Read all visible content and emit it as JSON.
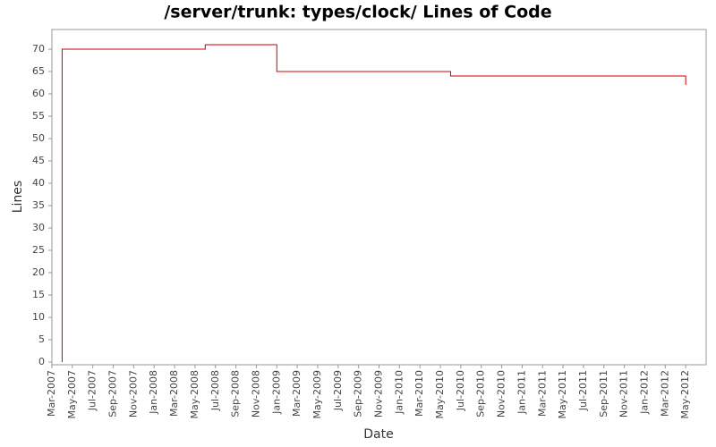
{
  "chart_data": {
    "type": "step",
    "title": "/server/trunk: types/clock/ Lines of Code",
    "x_label": "Date",
    "y_label": "Lines",
    "color": "#cc0000",
    "x": [
      "2007-04",
      "2007-04",
      "2008-06",
      "2009-01",
      "2010-06",
      "2012-05"
    ],
    "values": [
      0,
      70,
      71,
      65,
      64,
      62
    ],
    "xlim": [
      "2007-03",
      "2012-07"
    ],
    "xticks": [
      {
        "value": "2007-03",
        "label": "Mar-2007"
      },
      {
        "value": "2007-05",
        "label": "May-2007"
      },
      {
        "value": "2007-07",
        "label": "Jul-2007"
      },
      {
        "value": "2007-09",
        "label": "Sep-2007"
      },
      {
        "value": "2007-11",
        "label": "Nov-2007"
      },
      {
        "value": "2008-01",
        "label": "Jan-2008"
      },
      {
        "value": "2008-03",
        "label": "Mar-2008"
      },
      {
        "value": "2008-05",
        "label": "May-2008"
      },
      {
        "value": "2008-07",
        "label": "Jul-2008"
      },
      {
        "value": "2008-09",
        "label": "Sep-2008"
      },
      {
        "value": "2008-11",
        "label": "Nov-2008"
      },
      {
        "value": "2009-01",
        "label": "Jan-2009"
      },
      {
        "value": "2009-03",
        "label": "Mar-2009"
      },
      {
        "value": "2009-05",
        "label": "May-2009"
      },
      {
        "value": "2009-07",
        "label": "Jul-2009"
      },
      {
        "value": "2009-09",
        "label": "Sep-2009"
      },
      {
        "value": "2009-11",
        "label": "Nov-2009"
      },
      {
        "value": "2010-01",
        "label": "Jan-2010"
      },
      {
        "value": "2010-03",
        "label": "Mar-2010"
      },
      {
        "value": "2010-05",
        "label": "May-2010"
      },
      {
        "value": "2010-07",
        "label": "Jul-2010"
      },
      {
        "value": "2010-09",
        "label": "Sep-2010"
      },
      {
        "value": "2010-11",
        "label": "Nov-2010"
      },
      {
        "value": "2011-01",
        "label": "Jan-2011"
      },
      {
        "value": "2011-03",
        "label": "Mar-2011"
      },
      {
        "value": "2011-05",
        "label": "May-2011"
      },
      {
        "value": "2011-07",
        "label": "Jul-2011"
      },
      {
        "value": "2011-09",
        "label": "Sep-2011"
      },
      {
        "value": "2011-11",
        "label": "Nov-2011"
      },
      {
        "value": "2012-01",
        "label": "Jan-2012"
      },
      {
        "value": "2012-03",
        "label": "Mar-2012"
      },
      {
        "value": "2012-05",
        "label": "May-2012"
      }
    ],
    "ylim": [
      -0.6,
      74.4
    ],
    "yticks": [
      0,
      5,
      10,
      15,
      20,
      25,
      30,
      35,
      40,
      45,
      50,
      55,
      60,
      65,
      70
    ],
    "grid": false
  }
}
